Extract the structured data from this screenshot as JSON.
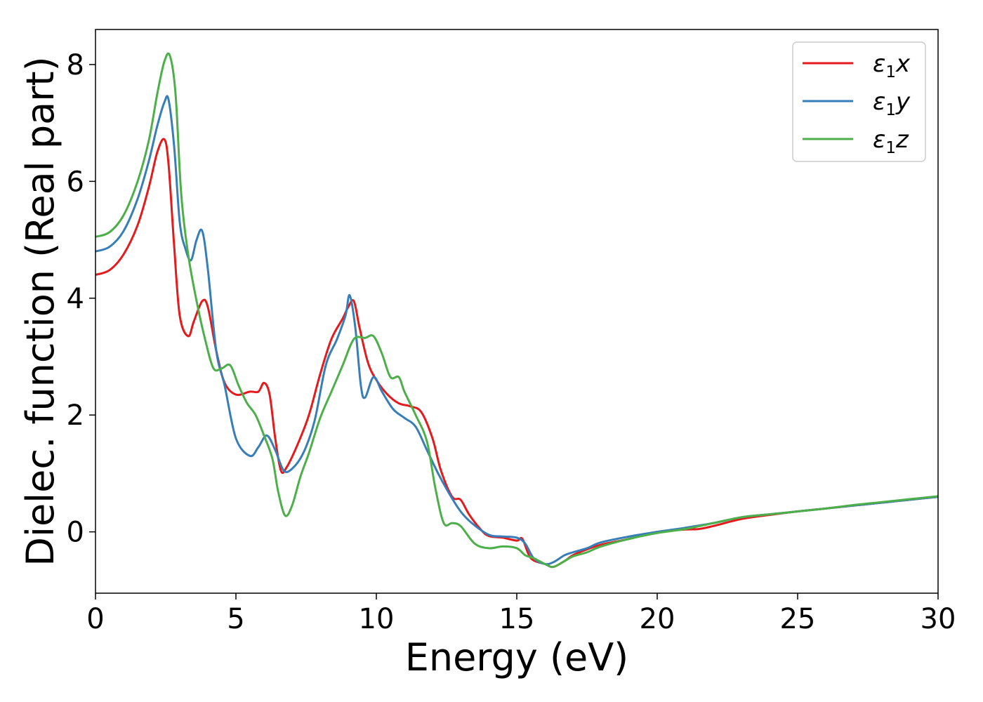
{
  "chart_data": {
    "type": "line",
    "title": "",
    "xlabel": "Energy (eV)",
    "ylabel": "Dielec. function (Real part)",
    "xlim": [
      0,
      30
    ],
    "ylim": [
      -1.05,
      8.6
    ],
    "xticks": [
      0,
      5,
      10,
      15,
      20,
      25,
      30
    ],
    "yticks": [
      0,
      2,
      4,
      6,
      8
    ],
    "grid": false,
    "legend_position": "top-right",
    "series": [
      {
        "name": "ε₁x",
        "legend": {
          "base": "ε",
          "sub": "1",
          "axis": "x"
        },
        "color": "#e41a1c",
        "x": [
          0,
          0.5,
          1.0,
          1.5,
          1.9,
          2.2,
          2.45,
          2.6,
          2.8,
          3.0,
          3.3,
          3.5,
          3.8,
          4.0,
          4.3,
          4.6,
          5.0,
          5.5,
          5.8,
          6.0,
          6.2,
          6.4,
          6.6,
          6.8,
          7.2,
          7.6,
          8.0,
          8.4,
          8.8,
          9.0,
          9.2,
          9.4,
          9.7,
          10.0,
          10.4,
          10.8,
          11.2,
          11.6,
          12.0,
          12.3,
          12.7,
          13.0,
          13.3,
          13.7,
          14.0,
          14.5,
          15.0,
          15.2,
          15.5,
          16.0,
          16.3,
          16.7,
          17.0,
          17.5,
          18.0,
          19.0,
          20.0,
          21.0,
          21.5,
          22.0,
          23.0,
          24.0,
          25.0,
          26.0,
          27.0,
          28.0,
          29.0,
          30.0
        ],
        "values": [
          4.4,
          4.48,
          4.75,
          5.25,
          5.9,
          6.5,
          6.72,
          6.3,
          4.9,
          3.7,
          3.35,
          3.6,
          3.95,
          3.85,
          3.1,
          2.55,
          2.35,
          2.4,
          2.4,
          2.55,
          2.35,
          1.6,
          1.05,
          1.1,
          1.5,
          2.0,
          2.7,
          3.3,
          3.65,
          3.85,
          3.95,
          3.5,
          2.9,
          2.6,
          2.35,
          2.2,
          2.15,
          2.05,
          1.6,
          1.05,
          0.6,
          0.55,
          0.3,
          0.05,
          -0.07,
          -0.1,
          -0.15,
          -0.12,
          -0.45,
          -0.55,
          -0.6,
          -0.5,
          -0.4,
          -0.3,
          -0.22,
          -0.12,
          0.0,
          0.04,
          0.05,
          0.1,
          0.22,
          0.29,
          0.35,
          0.4,
          0.45,
          0.5,
          0.55,
          0.6
        ]
      },
      {
        "name": "ε₁y",
        "legend": {
          "base": "ε",
          "sub": "1",
          "axis": "y"
        },
        "color": "#377eb8",
        "x": [
          0,
          0.5,
          1.0,
          1.5,
          1.9,
          2.2,
          2.45,
          2.6,
          2.8,
          3.0,
          3.2,
          3.4,
          3.6,
          3.8,
          4.0,
          4.3,
          4.6,
          5.0,
          5.5,
          5.8,
          6.1,
          6.4,
          6.7,
          7.0,
          7.4,
          7.8,
          8.2,
          8.6,
          8.9,
          9.05,
          9.25,
          9.45,
          9.6,
          9.9,
          10.2,
          10.6,
          11.0,
          11.4,
          11.8,
          12.2,
          12.6,
          13.0,
          13.4,
          14.0,
          14.5,
          15.0,
          15.3,
          15.6,
          16.0,
          16.3,
          16.7,
          17.0,
          17.5,
          18.0,
          19.0,
          20.0,
          21.0,
          22.0,
          23.0,
          24.0,
          25.0,
          26.0,
          27.0,
          28.0,
          29.0,
          30.0
        ],
        "values": [
          4.8,
          4.88,
          5.15,
          5.7,
          6.35,
          6.95,
          7.35,
          7.4,
          6.6,
          5.3,
          4.85,
          4.65,
          5.0,
          5.15,
          4.5,
          3.1,
          2.5,
          1.6,
          1.3,
          1.45,
          1.65,
          1.4,
          1.05,
          1.08,
          1.35,
          1.9,
          2.85,
          3.3,
          3.7,
          4.05,
          3.5,
          2.5,
          2.3,
          2.65,
          2.4,
          2.1,
          1.95,
          1.8,
          1.4,
          1.0,
          0.65,
          0.35,
          0.15,
          -0.05,
          -0.08,
          -0.1,
          -0.2,
          -0.45,
          -0.55,
          -0.52,
          -0.4,
          -0.35,
          -0.28,
          -0.18,
          -0.08,
          0.0,
          0.07,
          0.15,
          0.25,
          0.3,
          0.35,
          0.4,
          0.45,
          0.5,
          0.55,
          0.6
        ]
      },
      {
        "name": "ε₁z",
        "legend": {
          "base": "ε",
          "sub": "1",
          "axis": "z"
        },
        "color": "#4daf4a",
        "x": [
          0,
          0.5,
          1.0,
          1.5,
          1.9,
          2.2,
          2.45,
          2.65,
          2.85,
          3.05,
          3.3,
          3.6,
          3.9,
          4.2,
          4.5,
          4.8,
          5.1,
          5.4,
          5.7,
          6.0,
          6.3,
          6.5,
          6.75,
          7.0,
          7.3,
          7.6,
          8.0,
          8.4,
          8.8,
          9.2,
          9.6,
          9.9,
          10.2,
          10.5,
          10.8,
          11.0,
          11.4,
          11.8,
          12.1,
          12.4,
          12.7,
          13.0,
          13.5,
          14.0,
          14.5,
          15.0,
          15.3,
          15.6,
          16.0,
          16.3,
          16.7,
          17.0,
          17.5,
          18.0,
          19.0,
          20.0,
          21.0,
          22.0,
          23.0,
          24.0,
          25.0,
          26.0,
          27.0,
          28.0,
          29.0,
          30.0
        ],
        "values": [
          5.05,
          5.13,
          5.42,
          6.0,
          6.7,
          7.5,
          8.05,
          8.15,
          7.5,
          5.8,
          4.75,
          3.95,
          3.3,
          2.8,
          2.8,
          2.85,
          2.5,
          2.2,
          2.0,
          1.65,
          1.25,
          0.7,
          0.28,
          0.45,
          0.95,
          1.35,
          1.95,
          2.4,
          2.85,
          3.3,
          3.32,
          3.35,
          3.05,
          2.65,
          2.65,
          2.4,
          2.0,
          1.55,
          0.75,
          0.15,
          0.15,
          0.1,
          -0.2,
          -0.28,
          -0.25,
          -0.28,
          -0.4,
          -0.45,
          -0.55,
          -0.6,
          -0.5,
          -0.42,
          -0.35,
          -0.25,
          -0.12,
          -0.02,
          0.05,
          0.15,
          0.25,
          0.3,
          0.35,
          0.4,
          0.46,
          0.51,
          0.56,
          0.61
        ]
      }
    ]
  }
}
